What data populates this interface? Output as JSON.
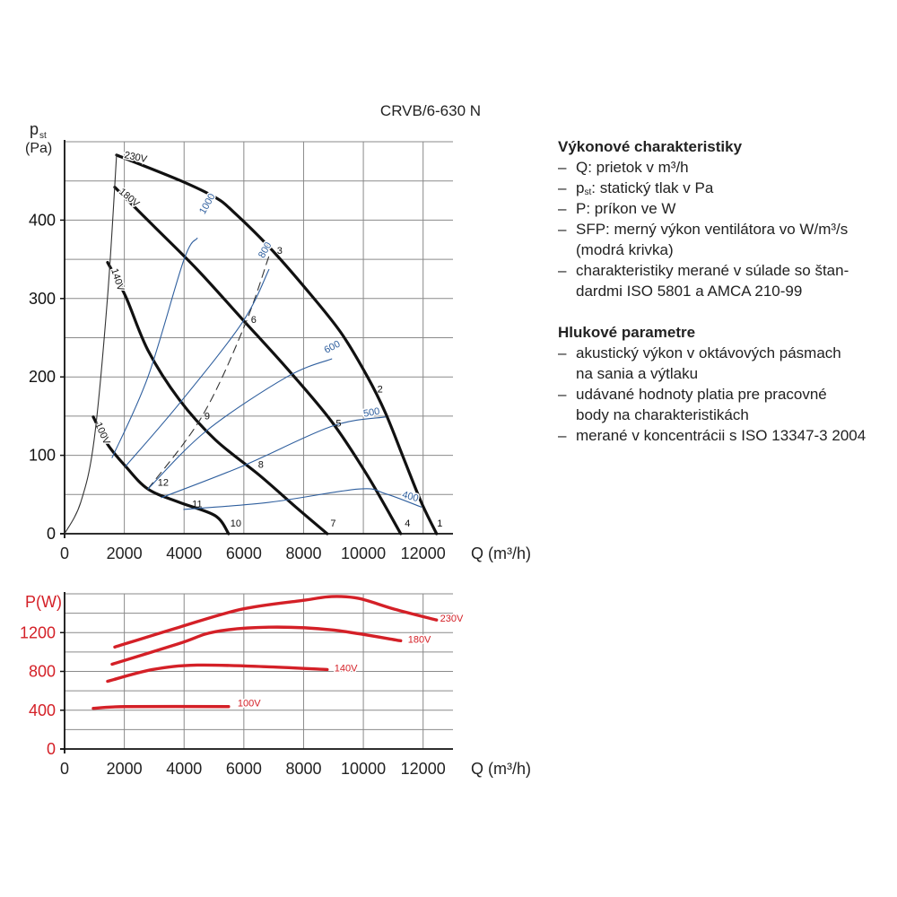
{
  "chart_data": [
    {
      "type": "line",
      "title": "CRVB/6-630 N",
      "y_label": "p",
      "y_label_sub": "st",
      "y_unit": "(Pa)",
      "x_label": "Q (m³/h)",
      "xlim": [
        0,
        13000
      ],
      "ylim": [
        0,
        500
      ],
      "xticks": [
        0,
        2000,
        4000,
        6000,
        8000,
        10000,
        12000
      ],
      "yticks": [
        0,
        100,
        200,
        300,
        400
      ],
      "minor_yticks": [
        50,
        150,
        250,
        350,
        450,
        500
      ],
      "grid": true,
      "series": [
        {
          "name": "230V",
          "color": "#111111",
          "style": "thick",
          "x": [
            1740,
            3840,
            5040,
            5640,
            6840,
            8040,
            9240,
            10140,
            10740,
            11340,
            11940,
            12450
          ],
          "values": [
            483,
            451,
            429,
            411,
            366,
            314,
            257,
            200,
            154,
            97,
            40,
            0
          ]
        },
        {
          "name": "180V",
          "color": "#111111",
          "style": "thick",
          "x": [
            1680,
            2940,
            4440,
            5940,
            7440,
            8940,
            10140,
            11250
          ],
          "values": [
            442,
            394,
            337,
            274,
            211,
            143,
            74,
            0
          ]
        },
        {
          "name": "140V",
          "color": "#111111",
          "style": "thick",
          "x": [
            1440,
            2040,
            2790,
            3840,
            5040,
            6540,
            7740,
            8790
          ],
          "values": [
            346,
            303,
            234,
            171,
            120,
            74,
            34,
            0
          ]
        },
        {
          "name": "100V",
          "color": "#111111",
          "style": "thick",
          "x": [
            960,
            1440,
            2040,
            2790,
            3840,
            5040,
            5490
          ],
          "values": [
            149,
            114,
            86,
            57,
            40,
            23,
            0
          ]
        },
        {
          "color": "#333333",
          "style": "thin",
          "x": [
            0,
            540,
            990,
            1440,
            1740
          ],
          "values": [
            0,
            40,
            120,
            303,
            483
          ]
        },
        {
          "color": "#333333",
          "style": "dashed",
          "x": [
            2790,
            4590,
            6000,
            6840
          ],
          "values": [
            57,
            149,
            263,
            354
          ]
        },
        {
          "name": "1000",
          "color": "#2f5f9e",
          "style": "thin",
          "x": [
            1590,
            2790,
            3990,
            4440
          ],
          "values": [
            97,
            200,
            349,
            377
          ]
        },
        {
          "name": "800",
          "color": "#2f5f9e",
          "style": "thin",
          "x": [
            2040,
            3840,
            5940,
            6840
          ],
          "values": [
            86,
            166,
            269,
            337
          ]
        },
        {
          "name": "600",
          "color": "#2f5f9e",
          "style": "thin",
          "x": [
            2790,
            4740,
            7440,
            8940
          ],
          "values": [
            57,
            131,
            200,
            223
          ]
        },
        {
          "name": "500",
          "color": "#2f5f9e",
          "style": "thin",
          "x": [
            3240,
            5940,
            8940,
            10740
          ],
          "values": [
            46,
            86,
            137,
            149
          ]
        },
        {
          "name": "400",
          "color": "#2f5f9e",
          "style": "thin",
          "x": [
            3990,
            6840,
            9840,
            10740,
            11940
          ],
          "values": [
            31,
            40,
            57,
            51,
            34
          ]
        }
      ],
      "points": [
        {
          "label": "1",
          "x": 12560,
          "y": 9
        },
        {
          "label": "2",
          "x": 10560,
          "y": 180
        },
        {
          "label": "3",
          "x": 7200,
          "y": 357
        },
        {
          "label": "4",
          "x": 11480,
          "y": 9
        },
        {
          "label": "5",
          "x": 9170,
          "y": 137
        },
        {
          "label": "6",
          "x": 6330,
          "y": 269
        },
        {
          "label": "7",
          "x": 8990,
          "y": 9
        },
        {
          "label": "8",
          "x": 6570,
          "y": 84
        },
        {
          "label": "9",
          "x": 4770,
          "y": 146
        },
        {
          "label": "10",
          "x": 5730,
          "y": 9
        },
        {
          "label": "11",
          "x": 4440,
          "y": 34
        },
        {
          "label": "12",
          "x": 3300,
          "y": 61
        }
      ]
    },
    {
      "type": "line",
      "y_label": "P(W)",
      "x_label": "Q (m³/h)",
      "xlim": [
        0,
        13000
      ],
      "ylim": [
        0,
        1600
      ],
      "xticks": [
        0,
        2000,
        4000,
        6000,
        8000,
        10000,
        12000
      ],
      "yticks": [
        0,
        400,
        800,
        1200
      ],
      "minor_yticks": [
        200,
        600,
        1000,
        1400,
        1600
      ],
      "grid": true,
      "series": [
        {
          "name": "230V",
          "color": "#d42027",
          "style": "power",
          "x": [
            1680,
            3840,
            5940,
            8040,
            8940,
            9840,
            11040,
            12450
          ],
          "values": [
            1051,
            1256,
            1442,
            1535,
            1572,
            1553,
            1442,
            1330
          ]
        },
        {
          "name": "180V",
          "color": "#d42027",
          "style": "power",
          "x": [
            1590,
            3840,
            5040,
            6840,
            8940,
            11250
          ],
          "values": [
            874,
            1088,
            1209,
            1256,
            1228,
            1116
          ]
        },
        {
          "name": "140V",
          "color": "#d42027",
          "style": "power",
          "x": [
            1440,
            2940,
            4440,
            6840,
            8790
          ],
          "values": [
            698,
            819,
            865,
            847,
            819
          ]
        },
        {
          "name": "100V",
          "color": "#d42027",
          "style": "power",
          "x": [
            960,
            2040,
            5490
          ],
          "values": [
            419,
            437,
            437
          ]
        }
      ]
    }
  ],
  "panel": {
    "heading1": "Výkonové charakteristiky",
    "items1": [
      {
        "lines": [
          "Q: prietok v m³/h"
        ]
      },
      {
        "lines": [
          "p"
        ],
        "sub": "st",
        "rest": ": statický tlak v Pa"
      },
      {
        "lines": [
          "P: príkon ve W"
        ]
      },
      {
        "lines": [
          "SFP: merný výkon ventilátora vo W/m³/s",
          "(modrá krivka)"
        ]
      },
      {
        "lines": [
          "charakteristiky merané v súlade so štan-",
          "dardmi ISO 5801 a AMCA 210-99"
        ]
      }
    ],
    "heading2": "Hlukové parametre",
    "items2": [
      {
        "lines": [
          "akustický výkon v oktávových pásmach",
          "na sania a výtlaku"
        ]
      },
      {
        "lines": [
          "udávané hodnoty platia pre pracovné",
          "body na charakteristikách"
        ]
      },
      {
        "lines": [
          "merané v koncentrácii s ISO 13347-3 2004"
        ]
      }
    ],
    "bullet": "–"
  }
}
